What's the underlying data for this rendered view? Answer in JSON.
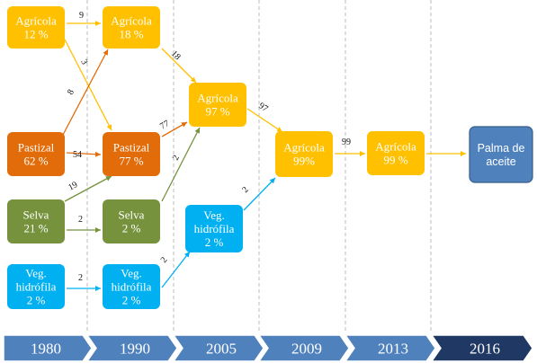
{
  "colors": {
    "agricola": "#FFC000",
    "pastizal": "#E36C0A",
    "selva": "#76923C",
    "hidrofila": "#00B0F0",
    "palma": "#4F81BD",
    "timeline": "#4F81BD",
    "timeline_last": "#1F3864"
  },
  "years": [
    "1980",
    "1990",
    "2005",
    "2009",
    "2013",
    "2016"
  ],
  "nodes": [
    {
      "id": "agr1980",
      "type": "agricola",
      "lines": [
        "Agrícola",
        "12 %"
      ]
    },
    {
      "id": "pas1980",
      "type": "pastizal",
      "lines": [
        "Pastizal",
        "62 %"
      ]
    },
    {
      "id": "sel1980",
      "type": "selva",
      "lines": [
        "Selva",
        "21 %"
      ]
    },
    {
      "id": "hid1980",
      "type": "hidrofila",
      "lines": [
        "Veg.",
        "hidrófila",
        "2 %"
      ]
    },
    {
      "id": "agr1990",
      "type": "agricola",
      "lines": [
        "Agrícola",
        "18 %"
      ]
    },
    {
      "id": "pas1990",
      "type": "pastizal",
      "lines": [
        "Pastizal",
        "77 %"
      ]
    },
    {
      "id": "sel1990",
      "type": "selva",
      "lines": [
        "Selva",
        "2 %"
      ]
    },
    {
      "id": "hid1990",
      "type": "hidrofila",
      "lines": [
        "Veg.",
        "hidrófila",
        "2 %"
      ]
    },
    {
      "id": "agr2005",
      "type": "agricola",
      "lines": [
        "Agrícola",
        "97 %"
      ]
    },
    {
      "id": "hid2005",
      "type": "hidrofila",
      "lines": [
        "Veg.",
        "hidrófila",
        "2 %"
      ]
    },
    {
      "id": "agr2009",
      "type": "agricola",
      "lines": [
        "Agrícola",
        "99%"
      ]
    },
    {
      "id": "agr2013",
      "type": "agricola",
      "lines": [
        "Agrícola",
        "99 %"
      ]
    },
    {
      "id": "palma2016",
      "type": "palma",
      "lines": [
        "Palma de",
        "aceite"
      ]
    }
  ],
  "edges": [
    {
      "from": "agr1980",
      "to": "agr1990",
      "label": "9"
    },
    {
      "from": "agr1980",
      "to": "pas1990",
      "label": "3"
    },
    {
      "from": "pas1980",
      "to": "agr1990",
      "label": "8"
    },
    {
      "from": "pas1980",
      "to": "pas1990",
      "label": "54"
    },
    {
      "from": "sel1980",
      "to": "pas1990",
      "label": "19"
    },
    {
      "from": "sel1980",
      "to": "sel1990",
      "label": "2"
    },
    {
      "from": "hid1980",
      "to": "hid1990",
      "label": "2"
    },
    {
      "from": "agr1990",
      "to": "agr2005",
      "label": "18"
    },
    {
      "from": "pas1990",
      "to": "agr2005",
      "label": "77"
    },
    {
      "from": "sel1990",
      "to": "agr2005",
      "label": "2"
    },
    {
      "from": "hid1990",
      "to": "hid2005",
      "label": "2"
    },
    {
      "from": "agr2005",
      "to": "agr2009",
      "label": "97"
    },
    {
      "from": "hid2005",
      "to": "agr2009",
      "label": "2"
    },
    {
      "from": "agr2009",
      "to": "agr2013",
      "label": "99"
    },
    {
      "from": "agr2013",
      "to": "palma2016",
      "label": ""
    }
  ]
}
